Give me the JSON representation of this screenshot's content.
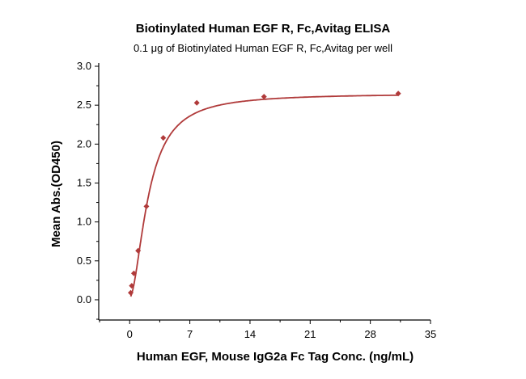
{
  "chart_data": {
    "type": "scatter",
    "title": "Biotinylated Human EGF R, Fc,Avitag ELISA",
    "subtitle": "0.1 μg of Biotinylated Human EGF R, Fc,Avitag per well",
    "xlabel": "Human EGF, Mouse IgG2a Fc Tag Conc. (ng/mL)",
    "ylabel": "Mean Abs.(OD450)",
    "xlim": [
      -3.6,
      35
    ],
    "ylim": [
      -0.26,
      3.0
    ],
    "xticks": [
      "0",
      "7",
      "14",
      "21",
      "28",
      "35"
    ],
    "yticks": [
      "0.0",
      "0.5",
      "1.0",
      "1.5",
      "2.0",
      "2.5",
      "3.0"
    ],
    "grid": false,
    "color": "#b03a3a",
    "fit": "4-parameter logistic curve",
    "x": [
      0.12,
      0.24,
      0.49,
      0.98,
      1.95,
      3.91,
      7.81,
      15.63,
      31.25
    ],
    "y": [
      0.09,
      0.18,
      0.34,
      0.63,
      1.2,
      2.08,
      2.53,
      2.61,
      2.65
    ]
  }
}
